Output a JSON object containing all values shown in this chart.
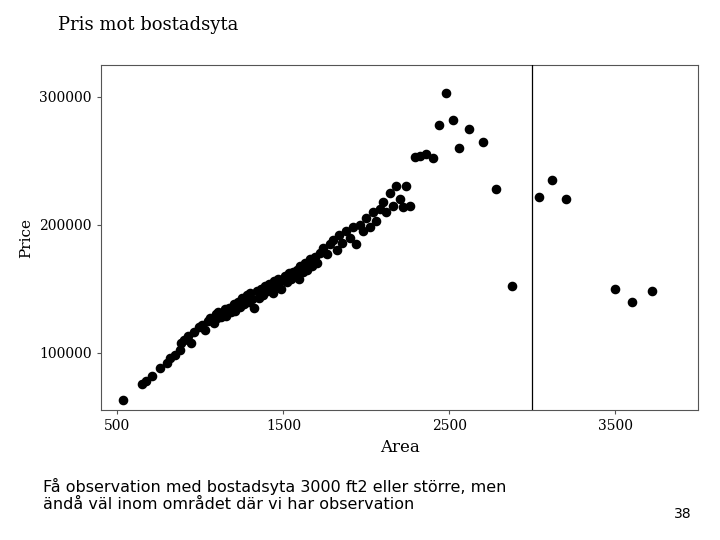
{
  "title": "Pris mot bostadsyta",
  "xlabel": "Area",
  "ylabel": "Price",
  "xlim": [
    400,
    4000
  ],
  "ylim": [
    55000,
    325000
  ],
  "xticks": [
    500,
    1500,
    2500,
    3500
  ],
  "yticks": [
    100000,
    200000,
    300000
  ],
  "vline_x": 3000,
  "marker_size": 35,
  "marker_color": "black",
  "background_color": "white",
  "subtitle_text": "Få observation med bostadsyta 3000 ft2 eller större, men\nändå väl inom området där vi har observation",
  "page_number": "38",
  "scatter_x": [
    534,
    648,
    670,
    710,
    756,
    800,
    816,
    848,
    876,
    884,
    900,
    924,
    946,
    962,
    993,
    1010,
    1028,
    1044,
    1056,
    1082,
    1092,
    1100,
    1108,
    1124,
    1148,
    1156,
    1172,
    1184,
    1200,
    1210,
    1224,
    1236,
    1248,
    1264,
    1280,
    1292,
    1300,
    1312,
    1324,
    1340,
    1352,
    1368,
    1380,
    1390,
    1404,
    1412,
    1428,
    1436,
    1444,
    1460,
    1468,
    1476,
    1488,
    1500,
    1512,
    1520,
    1532,
    1548,
    1556,
    1568,
    1580,
    1592,
    1600,
    1616,
    1628,
    1644,
    1660,
    1672,
    1688,
    1700,
    1720,
    1740,
    1760,
    1780,
    1800,
    1820,
    1836,
    1856,
    1876,
    1900,
    1920,
    1940,
    1960,
    1980,
    2000,
    2020,
    2040,
    2060,
    2080,
    2100,
    2120,
    2140,
    2160,
    2180,
    2200,
    2220,
    2240,
    2260,
    2290,
    2320,
    2360,
    2400,
    2440,
    2480,
    2520,
    2560,
    2620,
    2700,
    2780,
    2880,
    3040,
    3120,
    3200,
    3500,
    3600,
    3720
  ],
  "scatter_y": [
    63000,
    76000,
    78000,
    82000,
    88000,
    92000,
    96000,
    98000,
    102000,
    108000,
    110000,
    113000,
    108000,
    116000,
    120000,
    122000,
    118000,
    125000,
    127000,
    123000,
    130000,
    127000,
    132000,
    128000,
    134000,
    129000,
    135000,
    132000,
    138000,
    133000,
    140000,
    136000,
    143000,
    138000,
    145000,
    140000,
    147000,
    142000,
    135000,
    148000,
    143000,
    150000,
    145000,
    152000,
    148000,
    154000,
    150000,
    147000,
    156000,
    152000,
    158000,
    155000,
    150000,
    157000,
    160000,
    155000,
    162000,
    158000,
    163000,
    161000,
    165000,
    158000,
    168000,
    163000,
    170000,
    165000,
    173000,
    168000,
    175000,
    170000,
    178000,
    182000,
    177000,
    185000,
    188000,
    180000,
    192000,
    186000,
    195000,
    190000,
    198000,
    185000,
    200000,
    195000,
    205000,
    198000,
    210000,
    203000,
    212000,
    218000,
    210000,
    225000,
    215000,
    230000,
    220000,
    214000,
    230000,
    215000,
    253000,
    254000,
    255000,
    252000,
    278000,
    303000,
    282000,
    260000,
    275000,
    265000,
    228000,
    152000,
    222000,
    235000,
    220000,
    150000,
    140000,
    148000
  ]
}
